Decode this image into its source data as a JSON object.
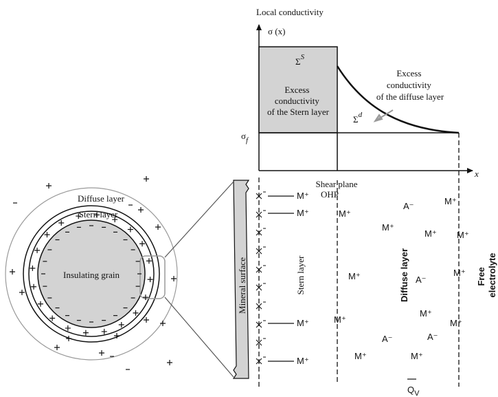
{
  "header": {
    "title": "Local conductivity"
  },
  "plot": {
    "y_axis_label": "σ (x)",
    "x_axis_label": "x",
    "stern_symbol": "Σ",
    "stern_symbol_sup": "S",
    "stern_text": [
      "Excess",
      "conductivity",
      "of the Stern layer"
    ],
    "diffuse_symbol": "Σ",
    "diffuse_symbol_sup": "d",
    "diffuse_text": [
      "Excess",
      "conductivity",
      "of the diffuse layer"
    ],
    "sigma_f": "σ",
    "sigma_f_sub": "f"
  },
  "grain": {
    "diffuse_label": "Diffuse layer",
    "stern_label": "Stern layer",
    "grain_label": "Insulating grain"
  },
  "interface": {
    "shear_plane": "Shear plane",
    "ohp": "OHP",
    "mineral_surface": "Mineral surface",
    "stern_layer": "Stern layer",
    "diffuse_layer": "Diffuse layer",
    "free_electrolyte": [
      "Free",
      "electrolyte"
    ],
    "charge_symbol": "Q",
    "charge_sub": "V",
    "ions": [
      "M⁺",
      "M⁺",
      "M⁺",
      "M⁺",
      "M⁺",
      "A⁻",
      "M⁺",
      "M⁺",
      "M⁺",
      "M⁺",
      "M⁺",
      "A⁻",
      "M⁺",
      "M⁺",
      "M⁺",
      "M⁺",
      "A⁻",
      "A⁻",
      "M⁺",
      "M⁺"
    ]
  }
}
